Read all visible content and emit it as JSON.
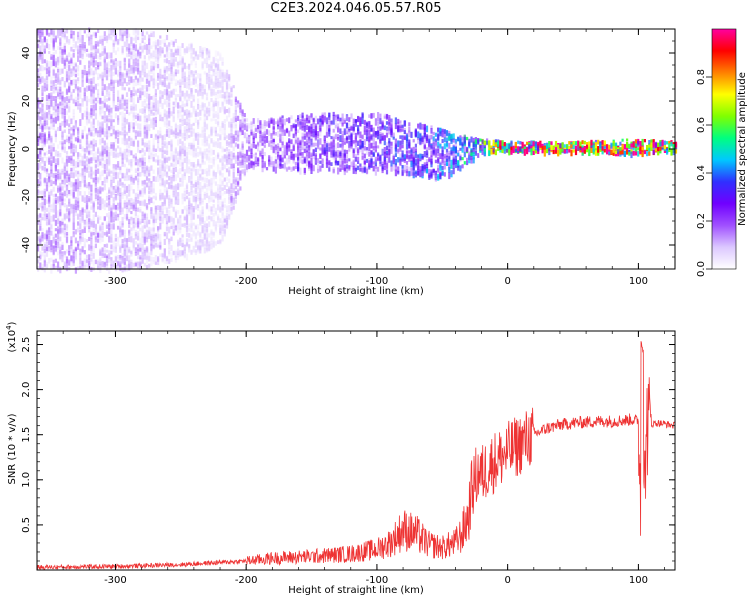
{
  "figure_title": "C2E3.2024.046.05.57.R05",
  "chart_data": [
    {
      "type": "heatmap",
      "title": "",
      "xlabel": "Height of straight line (km)",
      "ylabel": "Frequency (Hz)",
      "xlim": [
        -360,
        128
      ],
      "ylim": [
        -50,
        50
      ],
      "xticks": [
        -300,
        -200,
        -100,
        0,
        100
      ],
      "yticks": [
        -40,
        -20,
        0,
        20,
        40
      ],
      "colorbar": {
        "label": "Normalized spectral amplitude",
        "range": [
          0.0,
          1.0
        ],
        "ticks": [
          "0.0",
          "0.2",
          "0.4",
          "0.6",
          "0.8"
        ],
        "colormap": [
          "#ffffff",
          "#dcc8ff",
          "#a050ff",
          "#7000ff",
          "#3030ff",
          "#00c8ff",
          "#00ff80",
          "#80ff00",
          "#ffff00",
          "#ff8000",
          "#ff0000",
          "#ff00a0"
        ]
      },
      "description_points": [
        {
          "x": -360,
          "y": 0,
          "band_halfwidth_hz": 50,
          "amplitude": 0.15
        },
        {
          "x": -280,
          "y": 0,
          "band_halfwidth_hz": 50,
          "amplitude": 0.12
        },
        {
          "x": -220,
          "y": 0,
          "band_halfwidth_hz": 40,
          "amplitude": 0.08
        },
        {
          "x": -200,
          "y": 2,
          "band_halfwidth_hz": 10,
          "amplitude": 0.2
        },
        {
          "x": -150,
          "y": 3,
          "band_halfwidth_hz": 12,
          "amplitude": 0.25
        },
        {
          "x": -100,
          "y": 3,
          "band_halfwidth_hz": 12,
          "amplitude": 0.28
        },
        {
          "x": -50,
          "y": -2,
          "band_halfwidth_hz": 10,
          "amplitude": 0.35
        },
        {
          "x": -20,
          "y": 1,
          "band_halfwidth_hz": 3,
          "amplitude": 0.5
        },
        {
          "x": 0,
          "y": 1,
          "band_halfwidth_hz": 2,
          "amplitude": 0.85
        },
        {
          "x": 50,
          "y": 1,
          "band_halfwidth_hz": 2,
          "amplitude": 0.85
        },
        {
          "x": 100,
          "y": 1,
          "band_halfwidth_hz": 3,
          "amplitude": 0.8
        },
        {
          "x": 128,
          "y": 1,
          "band_halfwidth_hz": 2,
          "amplitude": 0.85
        }
      ]
    },
    {
      "type": "line",
      "title": "",
      "xlabel": "Height of straight line (km)",
      "ylabel": "SNR (10 * v/v)",
      "yscale_label": "(x10",
      "yscale_exponent": "4",
      "xlim": [
        -360,
        128
      ],
      "ylim": [
        0,
        26500
      ],
      "xticks": [
        -300,
        -200,
        -100,
        0,
        100
      ],
      "yticks": [
        "0.5",
        "1.0",
        "1.5",
        "2.0",
        "2.5"
      ],
      "line_color": "#ee3333",
      "series": [
        {
          "x": [
            -360,
            -300,
            -250,
            -200,
            -180,
            -150,
            -120,
            -100,
            -90,
            -80,
            -70,
            -60,
            -50,
            -40,
            -35,
            -30,
            -28,
            -25,
            -22,
            -20,
            -17,
            -15,
            -10,
            -5,
            0,
            5,
            10,
            20,
            30,
            40,
            50,
            60,
            70,
            80,
            90,
            95,
            100,
            102,
            104,
            106,
            110,
            115,
            120,
            128
          ],
          "y": [
            300,
            400,
            600,
            1000,
            1300,
            1500,
            1800,
            2300,
            3000,
            4500,
            4000,
            2800,
            2500,
            3000,
            4000,
            6000,
            8500,
            10000,
            11000,
            10500,
            11000,
            11500,
            12000,
            12500,
            13000,
            13500,
            14000,
            15000,
            15700,
            16100,
            16300,
            16400,
            16500,
            16500,
            16600,
            16700,
            16500,
            7000,
            5000,
            16000,
            16200,
            16300,
            16200,
            16000
          ]
        }
      ]
    }
  ]
}
